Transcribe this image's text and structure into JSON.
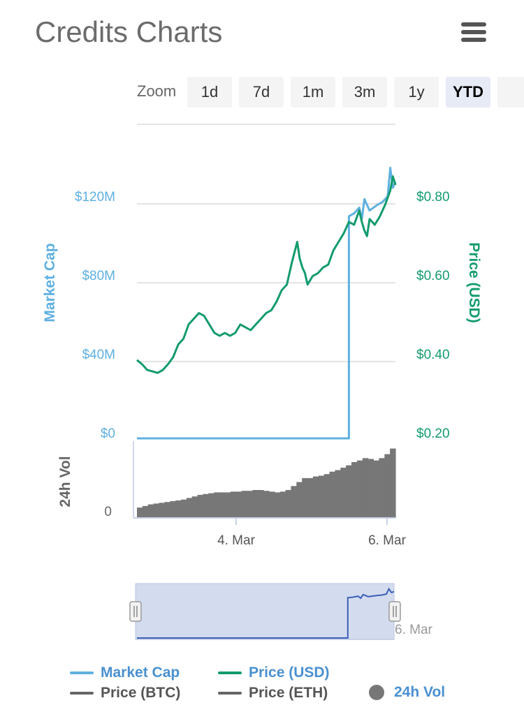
{
  "header": {
    "title": "Credits Charts",
    "menu_icon": "hamburger-menu-icon"
  },
  "zoom": {
    "label": "Zoom",
    "buttons": [
      "1d",
      "7d",
      "1m",
      "3m",
      "1y",
      "YTD",
      ""
    ],
    "active": "YTD"
  },
  "chart_data": {
    "type": "line",
    "series": [
      {
        "name": "Market Cap",
        "axis": "left",
        "color": "#5fb0e0",
        "points": [
          [
            0,
            0
          ],
          [
            0.82,
            0
          ],
          [
            0.82,
            0.78
          ],
          [
            0.84,
            0.79
          ],
          [
            0.86,
            0.81
          ],
          [
            0.87,
            0.77
          ],
          [
            0.88,
            0.84
          ],
          [
            0.9,
            0.8
          ],
          [
            0.93,
            0.82
          ],
          [
            0.95,
            0.83
          ],
          [
            0.97,
            0.85
          ],
          [
            0.98,
            0.95
          ],
          [
            0.99,
            0.88
          ],
          [
            1,
            0.9
          ]
        ]
      },
      {
        "name": "Price (USD)",
        "axis": "right",
        "color": "#139b6d",
        "points": [
          [
            0,
            0.275
          ],
          [
            0.02,
            0.26
          ],
          [
            0.04,
            0.24
          ],
          [
            0.06,
            0.235
          ],
          [
            0.08,
            0.23
          ],
          [
            0.1,
            0.24
          ],
          [
            0.12,
            0.26
          ],
          [
            0.14,
            0.285
          ],
          [
            0.16,
            0.33
          ],
          [
            0.18,
            0.35
          ],
          [
            0.2,
            0.4
          ],
          [
            0.22,
            0.42
          ],
          [
            0.24,
            0.44
          ],
          [
            0.26,
            0.43
          ],
          [
            0.28,
            0.4
          ],
          [
            0.3,
            0.37
          ],
          [
            0.32,
            0.36
          ],
          [
            0.34,
            0.37
          ],
          [
            0.36,
            0.36
          ],
          [
            0.38,
            0.37
          ],
          [
            0.4,
            0.4
          ],
          [
            0.42,
            0.39
          ],
          [
            0.44,
            0.38
          ],
          [
            0.46,
            0.4
          ],
          [
            0.48,
            0.42
          ],
          [
            0.5,
            0.44
          ],
          [
            0.52,
            0.45
          ],
          [
            0.54,
            0.48
          ],
          [
            0.56,
            0.52
          ],
          [
            0.58,
            0.54
          ],
          [
            0.6,
            0.62
          ],
          [
            0.62,
            0.69
          ],
          [
            0.63,
            0.63
          ],
          [
            0.64,
            0.6
          ],
          [
            0.65,
            0.58
          ],
          [
            0.66,
            0.54
          ],
          [
            0.68,
            0.57
          ],
          [
            0.7,
            0.58
          ],
          [
            0.72,
            0.6
          ],
          [
            0.74,
            0.61
          ],
          [
            0.76,
            0.66
          ],
          [
            0.78,
            0.69
          ],
          [
            0.8,
            0.72
          ],
          [
            0.82,
            0.76
          ],
          [
            0.84,
            0.75
          ],
          [
            0.86,
            0.8
          ],
          [
            0.87,
            0.76
          ],
          [
            0.88,
            0.73
          ],
          [
            0.89,
            0.71
          ],
          [
            0.9,
            0.77
          ],
          [
            0.92,
            0.75
          ],
          [
            0.94,
            0.78
          ],
          [
            0.96,
            0.82
          ],
          [
            0.98,
            0.87
          ],
          [
            0.99,
            0.92
          ],
          [
            1,
            0.89
          ]
        ]
      },
      {
        "name": "24h Vol",
        "axis": "volume",
        "color": "#777777",
        "values": [
          0.13,
          0.15,
          0.17,
          0.18,
          0.19,
          0.2,
          0.21,
          0.22,
          0.23,
          0.25,
          0.27,
          0.29,
          0.3,
          0.31,
          0.32,
          0.32,
          0.32,
          0.33,
          0.33,
          0.34,
          0.34,
          0.35,
          0.35,
          0.34,
          0.33,
          0.32,
          0.33,
          0.35,
          0.4,
          0.45,
          0.5,
          0.5,
          0.52,
          0.53,
          0.55,
          0.58,
          0.6,
          0.63,
          0.66,
          0.7,
          0.72,
          0.75,
          0.74,
          0.72,
          0.75,
          0.8,
          0.87
        ]
      }
    ],
    "left_axis": {
      "label": "Market Cap",
      "ticks": [
        "$0",
        "$40M",
        "$80M",
        "$120M"
      ],
      "values": [
        0,
        40,
        80,
        120
      ],
      "ylim": [
        0,
        150
      ]
    },
    "right_axis": {
      "label": "Price (USD)",
      "ticks": [
        "$0.20",
        "$0.40",
        "$0.60",
        "$0.80"
      ],
      "values": [
        0.2,
        0.4,
        0.6,
        0.8
      ],
      "ylim": [
        0.2,
        0.8
      ]
    },
    "volume_axis": {
      "label": "24h Vol",
      "ticks": [
        "0"
      ]
    },
    "x_axis": {
      "ticks": [
        "4. Mar",
        "6. Mar"
      ]
    },
    "navigator": {
      "label": "6. Mar"
    },
    "grid": true
  },
  "legend": {
    "items": [
      {
        "name": "Market Cap",
        "color": "#5fb0e0",
        "shape": "line",
        "text_color": "#4a90d0"
      },
      {
        "name": "Price (USD)",
        "color": "#139b6d",
        "shape": "line",
        "text_color": "#4a90d0"
      },
      {
        "name": "Price (BTC)",
        "color": "#666666",
        "shape": "line",
        "text_color": "#555555"
      },
      {
        "name": "Price (ETH)",
        "color": "#666666",
        "shape": "line",
        "text_color": "#555555"
      },
      {
        "name": "24h Vol",
        "color": "#777777",
        "shape": "circle",
        "text_color": "#4a90d0"
      }
    ]
  }
}
